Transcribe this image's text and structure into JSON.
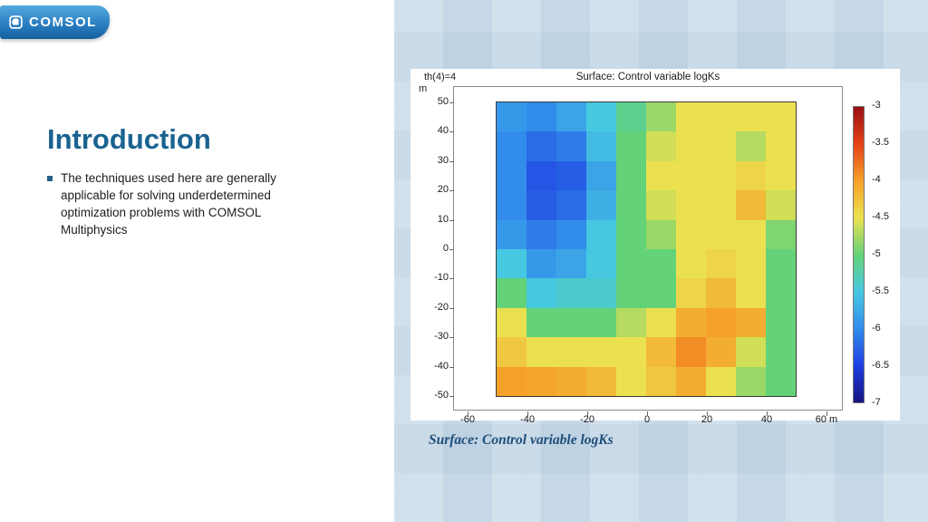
{
  "colors": {
    "heading_blue": "#1a6391",
    "caption_blue": "#1f4e79",
    "panel_blue": "#c9dbe9",
    "logo_blue_top": "#56aadf",
    "logo_blue_bottom": "#14609f",
    "bullet_marker_blue": "#25618a"
  },
  "logo": {
    "text": "COMSOL"
  },
  "content": {
    "heading": "Introduction",
    "bullet_text": "The techniques used here are generally applicable for solving underdetermined optimization problems with COMSOL Multiphysics",
    "caption": "Surface: Control variable logKs"
  },
  "plot": {
    "title": "Surface: Control variable logKs",
    "param_label": "th(4)=4",
    "y_axis_unit": "m",
    "x_axis_unit": "m",
    "x_ticks": [
      -60,
      -40,
      -20,
      0,
      20,
      40,
      60
    ],
    "y_ticks": [
      50,
      40,
      30,
      20,
      10,
      0,
      -10,
      -20,
      -30,
      -40,
      -50
    ],
    "colorbar_ticks": [
      -3,
      -3.5,
      -4,
      -4.5,
      -5,
      -5.5,
      -6,
      -6.5,
      -7
    ]
  },
  "chart_data": {
    "type": "heatmap",
    "title": "Surface: Control variable logKs",
    "xlabel": "m",
    "ylabel": "m",
    "x_range": [
      -50,
      50
    ],
    "y_range": [
      -50,
      50
    ],
    "axis_x_range": [
      -65,
      66
    ],
    "axis_y_range": [
      -55,
      56
    ],
    "value_range": [
      -7,
      -3
    ],
    "colorbar_range_top_to_bottom": [
      -3,
      -7
    ],
    "colormap": "jet",
    "colormap_stops": [
      [
        0.0,
        20,
        18,
        128
      ],
      [
        0.125,
        30,
        62,
        225
      ],
      [
        0.25,
        50,
        140,
        235
      ],
      [
        0.375,
        70,
        200,
        225
      ],
      [
        0.5,
        100,
        210,
        120
      ],
      [
        0.625,
        235,
        225,
        80
      ],
      [
        0.75,
        245,
        160,
        40
      ],
      [
        0.875,
        230,
        65,
        25
      ],
      [
        1.0,
        150,
        15,
        15
      ]
    ],
    "rows_order": "top-to-bottom, y = 50 down to -50; columns left-to-right, x = -50 to 50",
    "values": [
      [
        -5.9,
        -6.0,
        -5.8,
        -5.5,
        -5.1,
        -4.8,
        -4.5,
        -4.5,
        -4.5,
        -4.5
      ],
      [
        -6.0,
        -6.2,
        -6.1,
        -5.6,
        -5.0,
        -4.6,
        -4.5,
        -4.5,
        -4.7,
        -4.5
      ],
      [
        -6.0,
        -6.35,
        -6.3,
        -5.8,
        -5.0,
        -4.5,
        -4.5,
        -4.5,
        -4.4,
        -4.5
      ],
      [
        -6.0,
        -6.3,
        -6.2,
        -5.7,
        -5.0,
        -4.6,
        -4.5,
        -4.5,
        -4.2,
        -4.6
      ],
      [
        -5.9,
        -6.1,
        -6.0,
        -5.5,
        -5.0,
        -4.8,
        -4.5,
        -4.5,
        -4.5,
        -4.9
      ],
      [
        -5.5,
        -5.9,
        -5.8,
        -5.5,
        -5.0,
        -5.0,
        -4.5,
        -4.4,
        -4.5,
        -5.0
      ],
      [
        -5.0,
        -5.5,
        -5.4,
        -5.4,
        -5.0,
        -5.0,
        -4.4,
        -4.2,
        -4.5,
        -5.0
      ],
      [
        -4.5,
        -5.0,
        -5.0,
        -5.0,
        -4.7,
        -4.5,
        -4.1,
        -4.0,
        -4.1,
        -5.0
      ],
      [
        -4.3,
        -4.5,
        -4.5,
        -4.5,
        -4.5,
        -4.2,
        -3.9,
        -4.1,
        -4.6,
        -5.0
      ],
      [
        -4.0,
        -4.05,
        -4.1,
        -4.2,
        -4.5,
        -4.3,
        -4.1,
        -4.5,
        -4.8,
        -5.0
      ]
    ]
  }
}
